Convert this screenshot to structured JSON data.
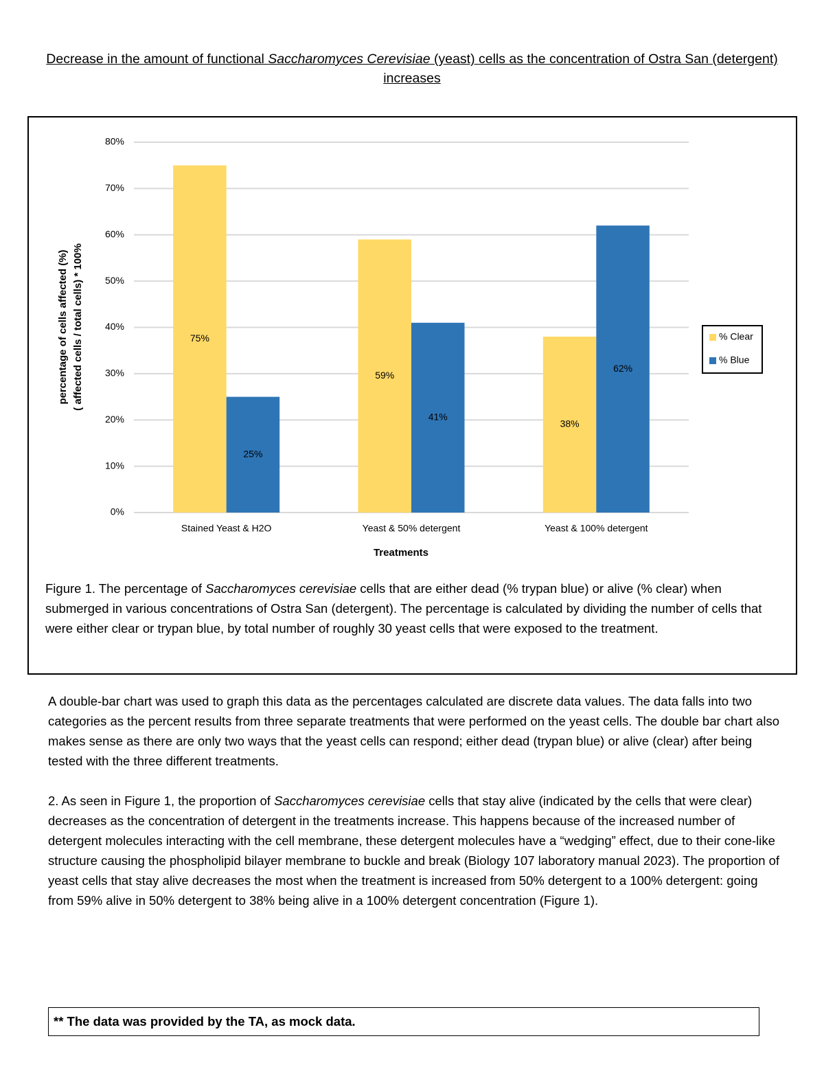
{
  "title": [
    "Decrease in the amount of functional ",
    "Saccharomyces Cerevisiae",
    " (yeast) cells as the concentration of Ostra San (detergent) increases"
  ],
  "chart_data": {
    "type": "bar",
    "categories": [
      "Stained Yeast & H2O",
      "Yeast & 50% detergent",
      "Yeast & 100% detergent"
    ],
    "series": [
      {
        "name": "% Clear",
        "color": "#FFD966",
        "values": [
          75,
          59,
          38
        ],
        "value_labels": [
          "75%",
          "59%",
          "38%"
        ]
      },
      {
        "name": "% Blue",
        "color": "#2E75B6",
        "values": [
          25,
          41,
          62
        ],
        "value_labels": [
          "25%",
          "41%",
          "62%"
        ]
      }
    ],
    "x_label": "Treatments",
    "y_label": [
      "percentage of cells affected (%)",
      "( affected cells / total cells) * 100%"
    ],
    "ylim": [
      0,
      80
    ],
    "yticks": [
      {
        "value": 0,
        "label": "0%"
      },
      {
        "value": 10,
        "label": "10%"
      },
      {
        "value": 20,
        "label": "20%"
      },
      {
        "value": 30,
        "label": "30%"
      },
      {
        "value": 40,
        "label": "40%"
      },
      {
        "value": 50,
        "label": "50%"
      },
      {
        "value": 60,
        "label": "60%"
      },
      {
        "value": 70,
        "label": "70%"
      },
      {
        "value": 80,
        "label": "80%"
      }
    ],
    "grid": true,
    "legend": "right"
  },
  "caption": [
    "Figure 1. The percentage of ",
    "Saccharomyces cerevisiae",
    " cells that are either dead (% trypan blue) or alive (% clear) when submerged in various concentrations of Ostra San (detergent). The percentage is calculated by dividing the number of cells that were either clear or trypan blue, by total number of roughly 30 yeast cells that were exposed to the treatment."
  ],
  "paragraph_1": "A double-bar chart was used to graph this data as the percentages calculated are discrete data values. The data falls into two categories as the percent results from three separate treatments that were performed on the yeast cells. The double bar chart also makes sense as there are only two ways that the yeast cells can respond; either dead (trypan blue) or alive (clear) after being tested with the three different treatments.",
  "paragraph_2": [
    "2. As seen in Figure 1, the proportion of ",
    "Saccharomyces cerevisiae",
    " cells that stay alive (indicated by the cells that were clear) decreases as the concentration of detergent in the treatments increase. This happens because of the increased number of detergent molecules interacting with the cell membrane, these detergent molecules have a “wedging” effect, due to their cone-like structure causing the phospholipid bilayer membrane to buckle and break (Biology 107 laboratory manual 2023). The proportion of yeast cells that stay alive decreases the most when the treatment is increased from 50% detergent to a 100% detergent: going from 59% alive in 50% detergent to 38% being alive in a 100% detergent concentration (Figure 1)."
  ],
  "note": "** The data was provided by the TA, as mock data."
}
